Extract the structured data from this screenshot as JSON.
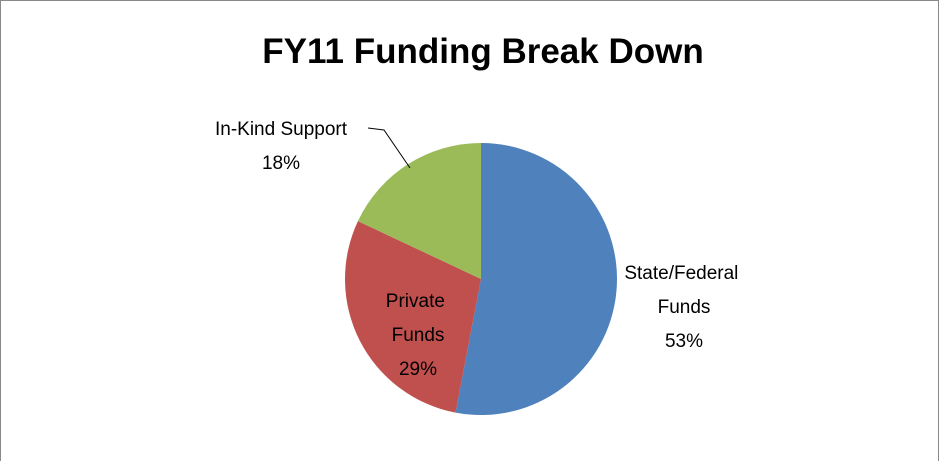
{
  "chart_data": {
    "type": "pie",
    "title": "FY11 Funding Break Down",
    "categories": [
      "State/Federal Funds",
      "Private Funds",
      "In-Kind Support"
    ],
    "values": [
      53,
      29,
      18
    ],
    "value_labels": [
      "53%",
      "29%",
      "18%"
    ],
    "colors": [
      "#4f81bd",
      "#c0504d",
      "#9bbb59"
    ]
  }
}
